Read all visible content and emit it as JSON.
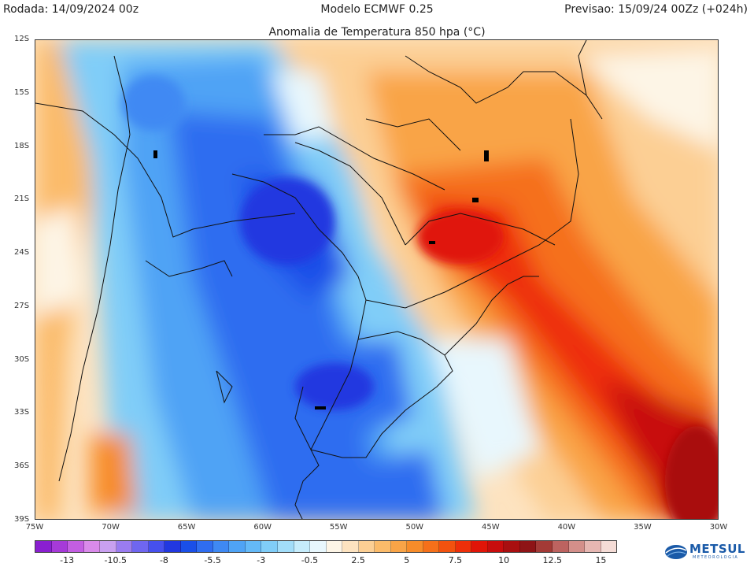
{
  "header": {
    "rodada": "Rodada: 14/09/2024 00z",
    "modelo": "Modelo ECMWF 0.25",
    "previsao": "Previsao: 15/09/24 00Zz (+024h)"
  },
  "map": {
    "title": "Anomalia de Temperatura 850 hpa (°C)",
    "lat_labels": [
      "12S",
      "15S",
      "18S",
      "21S",
      "24S",
      "27S",
      "30S",
      "33S",
      "36S",
      "39S"
    ],
    "lon_labels": [
      "75W",
      "70W",
      "65W",
      "60W",
      "55W",
      "50W",
      "45W",
      "40W",
      "35W",
      "30W"
    ],
    "extent": {
      "lon_min": -75,
      "lon_max": -30,
      "lat_min": -39,
      "lat_max": -12
    }
  },
  "colorbar": {
    "colors": [
      "#8a1fd0",
      "#a63ad8",
      "#c35ee2",
      "#d98aea",
      "#c9a0f0",
      "#9a7cf0",
      "#6f66f0",
      "#4650ee",
      "#2238e0",
      "#1a4fe8",
      "#2f6df0",
      "#3f89f3",
      "#4fa3f5",
      "#64b9f7",
      "#80cdf8",
      "#a2ddf9",
      "#c6ecfb",
      "#e8f7fd",
      "#fdf5e6",
      "#fde3c0",
      "#fccf94",
      "#fbbb6a",
      "#f9a447",
      "#f78c2a",
      "#f5701a",
      "#f2520f",
      "#ee2f0a",
      "#e01508",
      "#c80d0d",
      "#a90f10",
      "#8e1416",
      "#a33a36",
      "#bd6360",
      "#d38f8a",
      "#e6b7b2",
      "#f5dcd6"
    ],
    "tick_labels": [
      "-13",
      "-10.5",
      "-8",
      "-5.5",
      "-3",
      "-0.5",
      "2.5",
      "5",
      "7.5",
      "10",
      "12.5",
      "15"
    ]
  },
  "logo": {
    "name": "METSUL",
    "sub": "METEOROLOGIA"
  }
}
